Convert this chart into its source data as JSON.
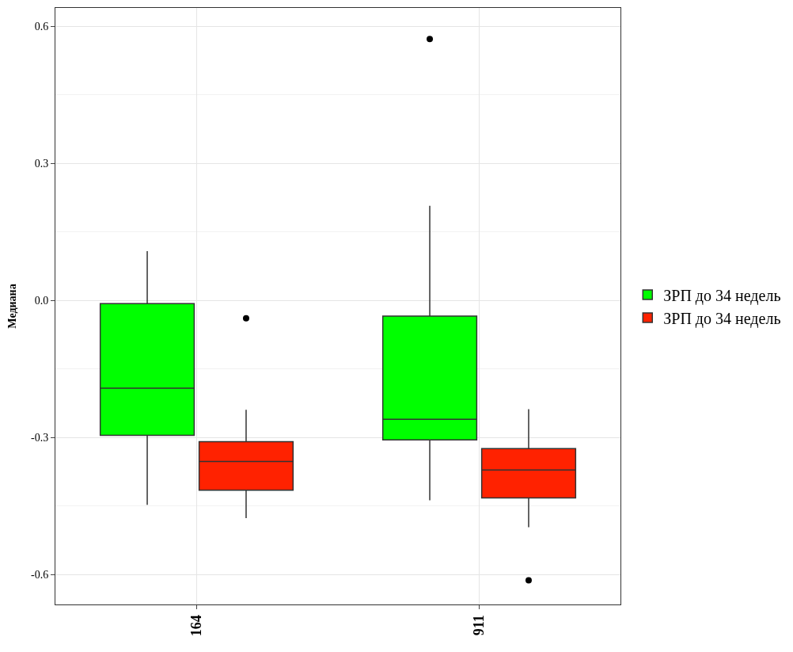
{
  "chart_data": {
    "type": "box",
    "ylabel": "Медиана",
    "categories": [
      "164",
      "911"
    ],
    "series": [
      {
        "name": "ЗРП до 34 недель",
        "color": "#00ff00",
        "boxes": [
          {
            "low": -0.447,
            "q1": -0.295,
            "median": -0.192,
            "q3": -0.007,
            "high": 0.108
          },
          {
            "low": -0.437,
            "q1": -0.305,
            "median": -0.26,
            "q3": -0.034,
            "high": 0.207,
            "outliers": [
              0.572
            ]
          }
        ]
      },
      {
        "name": "ЗРП до 34 недель",
        "color": "#ff2200",
        "boxes": [
          {
            "low": -0.476,
            "q1": -0.415,
            "median": -0.352,
            "q3": -0.309,
            "high": -0.239,
            "outliers": [
              -0.039
            ]
          },
          {
            "low": -0.496,
            "q1": -0.432,
            "median": -0.371,
            "q3": -0.324,
            "high": -0.238,
            "outliers": [
              -0.612
            ]
          }
        ]
      }
    ],
    "ylim": [
      -0.665,
      0.64
    ],
    "yticks": [
      {
        "value": -0.6,
        "label": "-0.6"
      },
      {
        "value": -0.3,
        "label": "-0.3"
      },
      {
        "value": 0,
        "label": "0.0"
      },
      {
        "value": 0.3,
        "label": "0.3"
      },
      {
        "value": 0.6,
        "label": "0.6"
      }
    ],
    "grid": true,
    "legend": "right"
  }
}
